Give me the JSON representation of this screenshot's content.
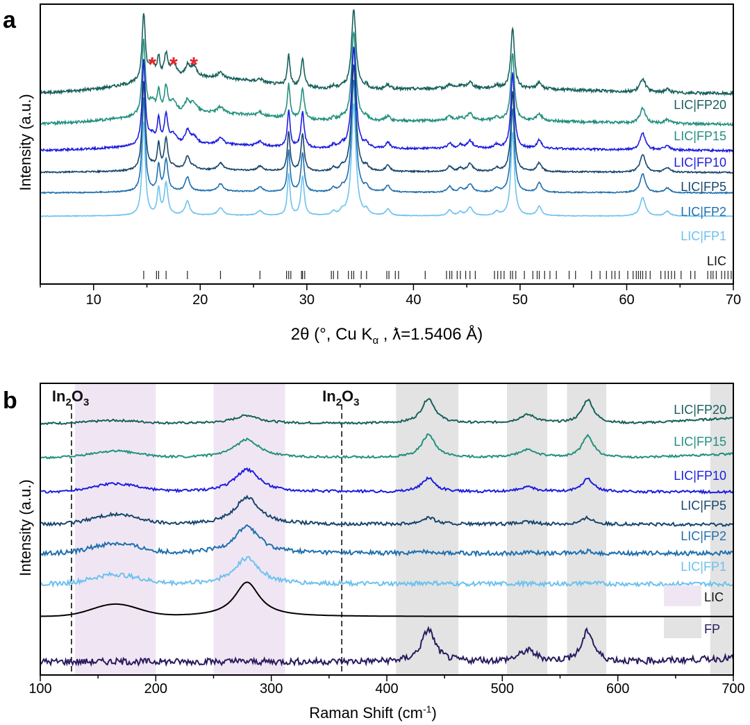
{
  "chart_data": [
    {
      "panel_label": "a",
      "type": "line",
      "xlabel": "2θ (°, Cu Kα , λ=1.5406 Å)",
      "ylabel": "Intensity (a.u.)",
      "xlim": [
        5,
        70
      ],
      "xticks": [
        10,
        20,
        30,
        40,
        50,
        60,
        70
      ],
      "y_ticks_shown": false,
      "annotations": [
        {
          "text": "*",
          "x": 15.5,
          "color": "#e8222a"
        },
        {
          "text": "*",
          "x": 17.5,
          "color": "#e8222a"
        },
        {
          "text": "*",
          "x": 19.4,
          "color": "#e8222a"
        }
      ],
      "peaks": [
        {
          "x": 14.7,
          "w": 0.18,
          "h": 1.0
        },
        {
          "x": 16.1,
          "w": 0.15,
          "h": 0.28
        },
        {
          "x": 16.8,
          "w": 0.2,
          "h": 0.34
        },
        {
          "x": 18.8,
          "w": 0.25,
          "h": 0.15
        },
        {
          "x": 21.9,
          "w": 0.3,
          "h": 0.08
        },
        {
          "x": 25.6,
          "w": 0.3,
          "h": 0.05
        },
        {
          "x": 28.3,
          "w": 0.15,
          "h": 0.45
        },
        {
          "x": 29.6,
          "w": 0.18,
          "h": 0.42
        },
        {
          "x": 32.5,
          "w": 0.2,
          "h": 0.04
        },
        {
          "x": 33.3,
          "w": 0.2,
          "h": 0.04
        },
        {
          "x": 34.4,
          "w": 0.25,
          "h": 1.2
        },
        {
          "x": 35.6,
          "w": 0.2,
          "h": 0.05
        },
        {
          "x": 37.6,
          "w": 0.25,
          "h": 0.07
        },
        {
          "x": 43.4,
          "w": 0.25,
          "h": 0.06
        },
        {
          "x": 44.4,
          "w": 0.2,
          "h": 0.04
        },
        {
          "x": 45.3,
          "w": 0.3,
          "h": 0.09
        },
        {
          "x": 47.8,
          "w": 0.25,
          "h": 0.04
        },
        {
          "x": 49.3,
          "w": 0.2,
          "h": 0.9
        },
        {
          "x": 51.8,
          "w": 0.25,
          "h": 0.1
        },
        {
          "x": 61.5,
          "w": 0.3,
          "h": 0.2
        },
        {
          "x": 63.8,
          "w": 0.3,
          "h": 0.05
        }
      ],
      "series": [
        {
          "name": "LIC|FP20",
          "color": "#16605a",
          "offset": 5.0,
          "amp": 0.72,
          "hump": 0.55,
          "noise": 0.05,
          "fp_peaks": [
            {
              "x": 15.5,
              "h": 0.18
            },
            {
              "x": 17.5,
              "h": 0.15
            },
            {
              "x": 19.4,
              "h": 0.12
            }
          ]
        },
        {
          "name": "LIC|FP15",
          "color": "#22907e",
          "offset": 3.95,
          "amp": 0.8,
          "hump": 0.4,
          "noise": 0.045,
          "fp_peaks": [
            {
              "x": 15.5,
              "h": 0.14
            },
            {
              "x": 17.5,
              "h": 0.12
            },
            {
              "x": 19.4,
              "h": 0.1
            }
          ]
        },
        {
          "name": "LIC|FP10",
          "color": "#1c1ce0",
          "offset": 3.05,
          "amp": 0.9,
          "hump": 0.22,
          "noise": 0.035,
          "fp_peaks": [
            {
              "x": 15.5,
              "h": 0.1
            },
            {
              "x": 17.5,
              "h": 0.1
            },
            {
              "x": 19.4,
              "h": 0.08
            }
          ]
        },
        {
          "name": "LIC|FP5",
          "color": "#17456c",
          "offset": 2.3,
          "amp": 0.95,
          "hump": 0.08,
          "noise": 0.025,
          "fp_peaks": [
            {
              "x": 15.5,
              "h": 0.04
            },
            {
              "x": 17.5,
              "h": 0.03
            },
            {
              "x": 19.4,
              "h": 0.03
            }
          ]
        },
        {
          "name": "LIC|FP2",
          "color": "#1e6fae",
          "offset": 1.6,
          "amp": 1.0,
          "hump": 0.05,
          "noise": 0.02,
          "fp_peaks": []
        },
        {
          "name": "LIC|FP1",
          "color": "#6cc1ef",
          "offset": 0.8,
          "amp": 1.0,
          "hump": 0.03,
          "noise": 0.012,
          "fp_peaks": []
        }
      ],
      "reference": {
        "name": "LIC",
        "color": "#222222",
        "ticks": [
          14.7,
          15.9,
          16.1,
          16.8,
          18.8,
          21.9,
          25.6,
          28.1,
          28.3,
          28.5,
          29.5,
          29.6,
          29.8,
          32.3,
          32.5,
          32.9,
          33.9,
          34.2,
          34.4,
          35.1,
          35.6,
          37.5,
          37.7,
          38.3,
          38.6,
          41.1,
          43.1,
          43.4,
          43.6,
          44.1,
          44.4,
          44.9,
          45.3,
          45.8,
          47.6,
          47.9,
          48.2,
          48.5,
          49.1,
          49.3,
          49.6,
          50.4,
          51.2,
          51.6,
          51.8,
          52.3,
          52.8,
          53.4,
          54.6,
          55.2,
          56.7,
          57.5,
          58.1,
          58.6,
          58.9,
          59.3,
          60.1,
          60.6,
          60.9,
          61.1,
          61.3,
          61.5,
          61.8,
          62.2,
          63.2,
          63.6,
          63.9,
          64.2,
          64.5,
          65.1,
          66.0,
          66.4,
          67.6,
          67.9,
          68.1,
          68.4,
          68.9,
          69.2,
          69.5,
          69.8
        ]
      }
    },
    {
      "panel_label": "b",
      "type": "line",
      "xlabel": "Raman Shift (cm⁻¹)",
      "ylabel": "Intensity (a.u.)",
      "xlim": [
        100,
        700
      ],
      "xticks": [
        100,
        200,
        300,
        400,
        500,
        600,
        700
      ],
      "y_ticks_shown": false,
      "shaded_bands": [
        {
          "from": 130,
          "to": 200,
          "color": "#f0e6f3",
          "legend": "LIC"
        },
        {
          "from": 250,
          "to": 312,
          "color": "#f0e6f3",
          "legend": "LIC"
        },
        {
          "from": 408,
          "to": 462,
          "color": "#e3e3e3",
          "legend": "FP"
        },
        {
          "from": 504,
          "to": 539,
          "color": "#e3e3e3",
          "legend": "FP"
        },
        {
          "from": 556,
          "to": 590,
          "color": "#e3e3e3",
          "legend": "FP"
        },
        {
          "from": 680,
          "to": 700,
          "color": "#e3e3e3",
          "legend": "FP"
        }
      ],
      "dashed_markers": [
        {
          "x": 127,
          "label_main": "In",
          "label_sub1": "2",
          "label_mid": "O",
          "label_sub2": "3"
        },
        {
          "x": 361,
          "label_main": "In",
          "label_sub1": "2",
          "label_mid": "O",
          "label_sub2": "3"
        }
      ],
      "legend": [
        {
          "label": "LIC",
          "color": "#f0e6f3"
        },
        {
          "label": "FP",
          "color": "#e3e3e3"
        }
      ],
      "series": [
        {
          "name": "LIC|FP20",
          "color": "#16605a",
          "offset": 7.2,
          "lic": 0.22,
          "fp": 0.65,
          "tilt": 0.15,
          "noise": 0.01
        },
        {
          "name": "LIC|FP15",
          "color": "#22907e",
          "offset": 6.25,
          "lic": 0.5,
          "fp": 0.6,
          "tilt": 0.1,
          "noise": 0.01
        },
        {
          "name": "LIC|FP10",
          "color": "#1c1ce0",
          "offset": 5.3,
          "lic": 0.62,
          "fp": 0.36,
          "tilt": 0.0,
          "noise": 0.012
        },
        {
          "name": "LIC|FP5",
          "color": "#17456c",
          "offset": 4.4,
          "lic": 0.75,
          "fp": 0.18,
          "tilt": 0.0,
          "noise": 0.015
        },
        {
          "name": "LIC|FP2",
          "color": "#1e6fae",
          "offset": 3.6,
          "lic": 0.75,
          "fp": 0.05,
          "tilt": 0.0,
          "noise": 0.02
        },
        {
          "name": "LIC|FP1",
          "color": "#6cc1ef",
          "offset": 2.75,
          "lic": 0.72,
          "fp": 0.03,
          "tilt": 0.0,
          "noise": 0.02
        },
        {
          "name": "LIC",
          "color": "#000000",
          "offset": 1.85,
          "lic": 0.95,
          "fp": 0.0,
          "tilt": 0.0,
          "noise": 0.0
        },
        {
          "name": "FP",
          "color": "#2a1a5e",
          "offset": 0.6,
          "lic": 0.0,
          "fp": 0.85,
          "tilt": 0.1,
          "noise": 0.03
        }
      ]
    }
  ]
}
